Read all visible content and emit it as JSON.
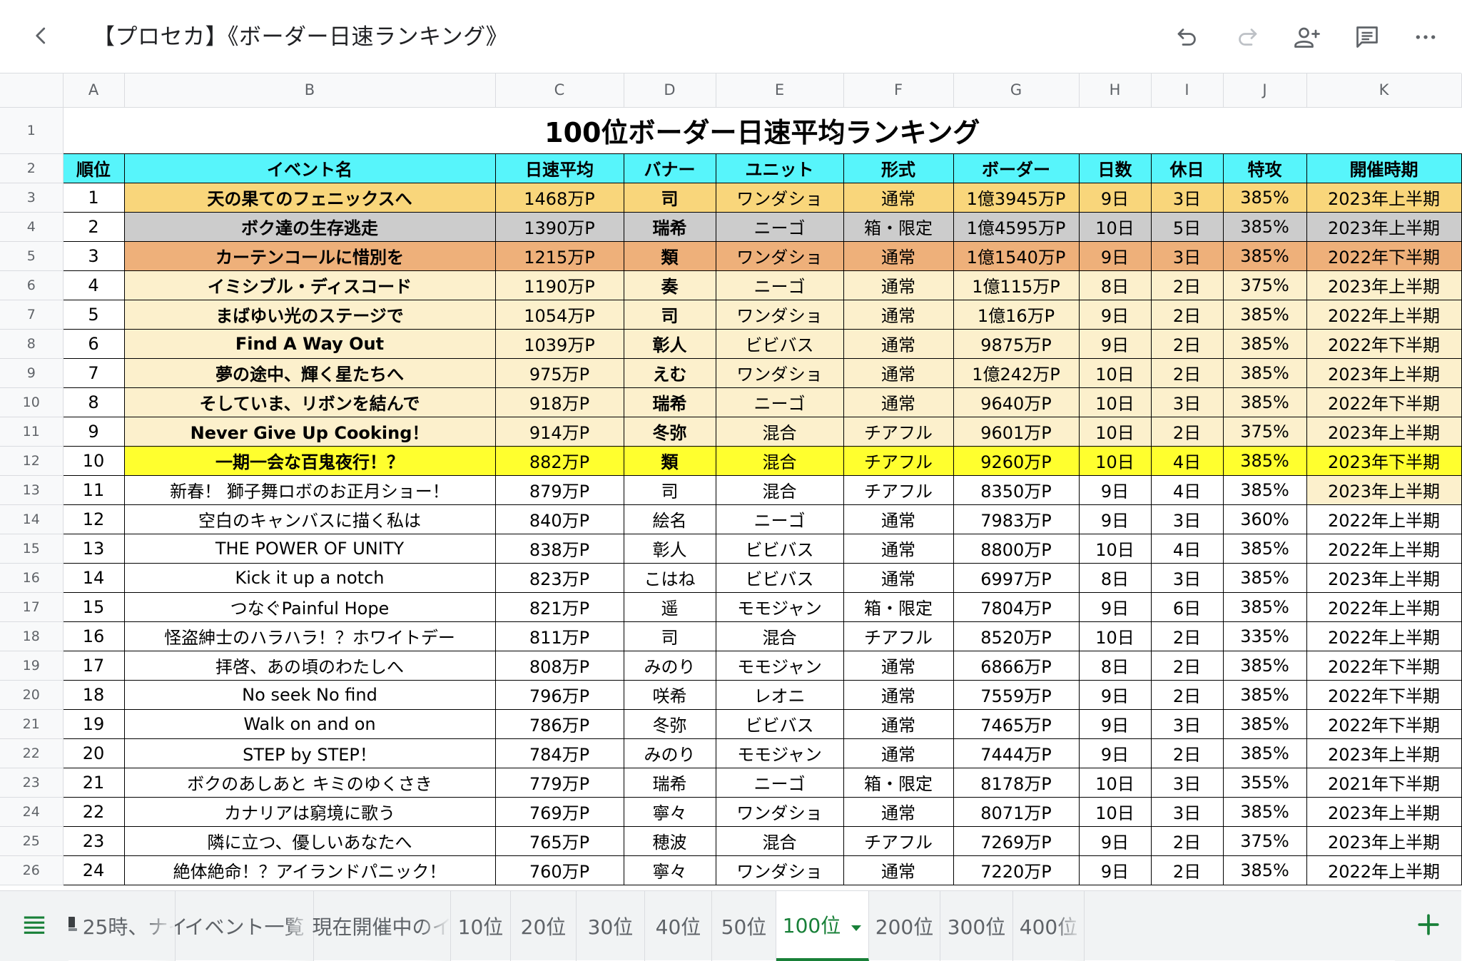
{
  "toolbar": {
    "title": "【プロセカ】《ボーダー日速ランキング》",
    "back_icon": "chevron-left-icon",
    "undo_icon": "undo-icon",
    "redo_icon": "redo-icon",
    "share_icon": "add-person-icon",
    "comment_icon": "comment-icon",
    "more_icon": "more-horizontal-icon"
  },
  "columns": [
    "A",
    "B",
    "C",
    "D",
    "E",
    "F",
    "G",
    "H",
    "I",
    "J",
    "K"
  ],
  "sheet": {
    "title": "100位ボーダー日速平均ランキング",
    "headers": [
      "順位",
      "イベント名",
      "日速平均",
      "バナー",
      "ユニット",
      "形式",
      "ボーダー",
      "日数",
      "休日",
      "特攻",
      "開催時期"
    ],
    "rows": [
      {
        "num": "3",
        "cells": [
          "1",
          "天の果てのフェニックスへ",
          "1468万P",
          "司",
          "ワンダショ",
          "通常",
          "1億3945万P",
          "9日",
          "3日",
          "385%",
          "2023年上半期"
        ]
      },
      {
        "num": "4",
        "cells": [
          "2",
          "ボク達の生存逃走",
          "1390万P",
          "瑞希",
          "ニーゴ",
          "箱・限定",
          "1億4595万P",
          "10日",
          "5日",
          "385%",
          "2023年上半期"
        ]
      },
      {
        "num": "5",
        "cells": [
          "3",
          "カーテンコールに惜別を",
          "1215万P",
          "類",
          "ワンダショ",
          "通常",
          "1億1540万P",
          "9日",
          "3日",
          "385%",
          "2022年下半期"
        ]
      },
      {
        "num": "6",
        "cells": [
          "4",
          "イミシブル・ディスコード",
          "1190万P",
          "奏",
          "ニーゴ",
          "通常",
          "1億115万P",
          "8日",
          "2日",
          "375%",
          "2023年上半期"
        ]
      },
      {
        "num": "7",
        "cells": [
          "5",
          "まばゆい光のステージで",
          "1054万P",
          "司",
          "ワンダショ",
          "通常",
          "1億16万P",
          "9日",
          "2日",
          "385%",
          "2022年上半期"
        ]
      },
      {
        "num": "8",
        "cells": [
          "6",
          "Find A Way Out",
          "1039万P",
          "彰人",
          "ビビバス",
          "通常",
          "9875万P",
          "9日",
          "2日",
          "385%",
          "2022年下半期"
        ]
      },
      {
        "num": "9",
        "cells": [
          "7",
          "夢の途中、輝く星たちへ",
          "975万P",
          "えむ",
          "ワンダショ",
          "通常",
          "1億242万P",
          "10日",
          "2日",
          "385%",
          "2023年上半期"
        ]
      },
      {
        "num": "10",
        "cells": [
          "8",
          "そしていま、リボンを結んで",
          "918万P",
          "瑞希",
          "ニーゴ",
          "通常",
          "9640万P",
          "10日",
          "3日",
          "385%",
          "2022年下半期"
        ]
      },
      {
        "num": "11",
        "cells": [
          "9",
          "Never Give Up Cooking！",
          "914万P",
          "冬弥",
          "混合",
          "チアフル",
          "9601万P",
          "10日",
          "2日",
          "375%",
          "2023年上半期"
        ]
      },
      {
        "num": "12",
        "cells": [
          "10",
          "一期一会な百鬼夜行！？",
          "882万P",
          "類",
          "混合",
          "チアフル",
          "9260万P",
          "10日",
          "4日",
          "385%",
          "2023年下半期"
        ]
      },
      {
        "num": "13",
        "cells": [
          "11",
          "新春！ 獅子舞ロボのお正月ショー！",
          "879万P",
          "司",
          "混合",
          "チアフル",
          "8350万P",
          "9日",
          "4日",
          "385%",
          "2023年上半期"
        ]
      },
      {
        "num": "14",
        "cells": [
          "12",
          "空白のキャンバスに描く私は",
          "840万P",
          "絵名",
          "ニーゴ",
          "通常",
          "7983万P",
          "9日",
          "3日",
          "360%",
          "2022年上半期"
        ]
      },
      {
        "num": "15",
        "cells": [
          "13",
          "THE POWER OF UNITY",
          "838万P",
          "彰人",
          "ビビバス",
          "通常",
          "8800万P",
          "10日",
          "4日",
          "385%",
          "2022年上半期"
        ]
      },
      {
        "num": "16",
        "cells": [
          "14",
          "Kick it up a notch",
          "823万P",
          "こはね",
          "ビビバス",
          "通常",
          "6997万P",
          "8日",
          "3日",
          "385%",
          "2023年上半期"
        ]
      },
      {
        "num": "17",
        "cells": [
          "15",
          "つなぐPainful Hope",
          "821万P",
          "遥",
          "モモジャン",
          "箱・限定",
          "7804万P",
          "9日",
          "6日",
          "385%",
          "2022年上半期"
        ]
      },
      {
        "num": "18",
        "cells": [
          "16",
          "怪盗紳士のハラハラ！？ホワイトデー",
          "811万P",
          "司",
          "混合",
          "チアフル",
          "8520万P",
          "10日",
          "2日",
          "335%",
          "2022年上半期"
        ]
      },
      {
        "num": "19",
        "cells": [
          "17",
          "拝啓、あの頃のわたしへ",
          "808万P",
          "みのり",
          "モモジャン",
          "通常",
          "6866万P",
          "8日",
          "2日",
          "385%",
          "2022年下半期"
        ]
      },
      {
        "num": "20",
        "cells": [
          "18",
          "No seek No find",
          "796万P",
          "咲希",
          "レオニ",
          "通常",
          "7559万P",
          "9日",
          "2日",
          "385%",
          "2022年下半期"
        ]
      },
      {
        "num": "21",
        "cells": [
          "19",
          "Walk on and on",
          "786万P",
          "冬弥",
          "ビビバス",
          "通常",
          "7465万P",
          "9日",
          "3日",
          "385%",
          "2022年下半期"
        ]
      },
      {
        "num": "22",
        "cells": [
          "20",
          "STEP by STEP！",
          "784万P",
          "みのり",
          "モモジャン",
          "通常",
          "7444万P",
          "9日",
          "2日",
          "385%",
          "2023年上半期"
        ]
      },
      {
        "num": "23",
        "cells": [
          "21",
          "ボクのあしあと キミのゆくさき",
          "779万P",
          "瑞希",
          "ニーゴ",
          "箱・限定",
          "8178万P",
          "10日",
          "3日",
          "355%",
          "2021年下半期"
        ]
      },
      {
        "num": "24",
        "cells": [
          "22",
          "カナリアは窮境に歌う",
          "769万P",
          "寧々",
          "ワンダショ",
          "通常",
          "8071万P",
          "10日",
          "3日",
          "385%",
          "2023年上半期"
        ]
      },
      {
        "num": "25",
        "cells": [
          "23",
          "隣に立つ、優しいあなたへ",
          "765万P",
          "穂波",
          "混合",
          "チアフル",
          "7269万P",
          "9日",
          "2日",
          "375%",
          "2023年上半期"
        ]
      },
      {
        "num": "26",
        "cells": [
          "24",
          "絶体絶命！？アイランドパニック！",
          "760万P",
          "寧々",
          "ワンダショ",
          "通常",
          "7220万P",
          "9日",
          "2日",
          "385%",
          "2022年上半期"
        ]
      }
    ]
  },
  "tabs": [
    {
      "label": "25時、ナイ",
      "icon": "laptop-icon",
      "active": false
    },
    {
      "label": "イベント一覧",
      "active": false
    },
    {
      "label": "現在開催中のイ",
      "active": false
    },
    {
      "label": "10位",
      "active": false
    },
    {
      "label": "20位",
      "active": false
    },
    {
      "label": "30位",
      "active": false
    },
    {
      "label": "40位",
      "active": false
    },
    {
      "label": "50位",
      "active": false
    },
    {
      "label": "100位",
      "active": true
    },
    {
      "label": "200位",
      "active": false
    },
    {
      "label": "300位",
      "active": false
    },
    {
      "label": "400位",
      "active": false
    }
  ],
  "colors": {
    "header_cyan": "#57f5fb",
    "gold": "#f9d67b",
    "silver": "#cccccc",
    "bronze": "#eeb07a",
    "cream": "#fcf0cc",
    "yellow": "#ffff2e",
    "active_tab_green": "#188038"
  }
}
